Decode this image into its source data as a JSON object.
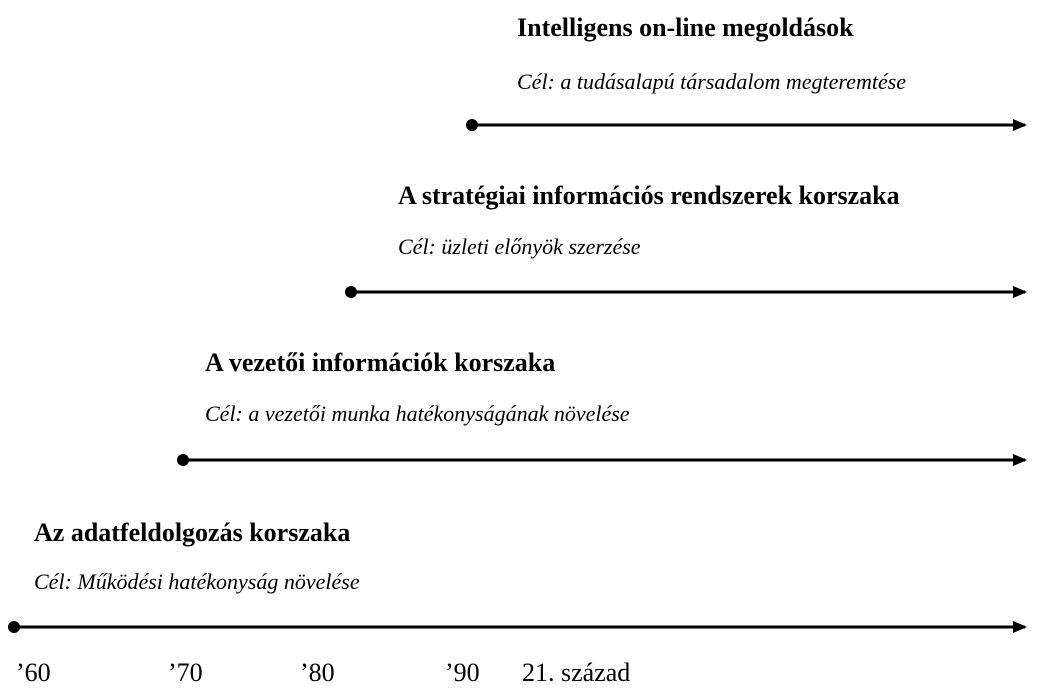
{
  "eras": [
    {
      "title": "Intelligens on-line megoldások",
      "goal": "Cél: a tudásalapú társadalom megteremtése"
    },
    {
      "title": "A stratégiai információs rendszerek korszaka",
      "goal": "Cél: üzleti előnyök szerzése"
    },
    {
      "title": "A vezetői információk korszaka",
      "goal": "Cél: a vezetői munka hatékonyságának növelése"
    },
    {
      "title": "Az adatfeldolgozás korszaka",
      "goal": "Cél: Működési hatékonyság növelése"
    }
  ],
  "axis_labels": [
    "’60",
    "’70",
    "’80",
    "’90",
    "21. század"
  ]
}
